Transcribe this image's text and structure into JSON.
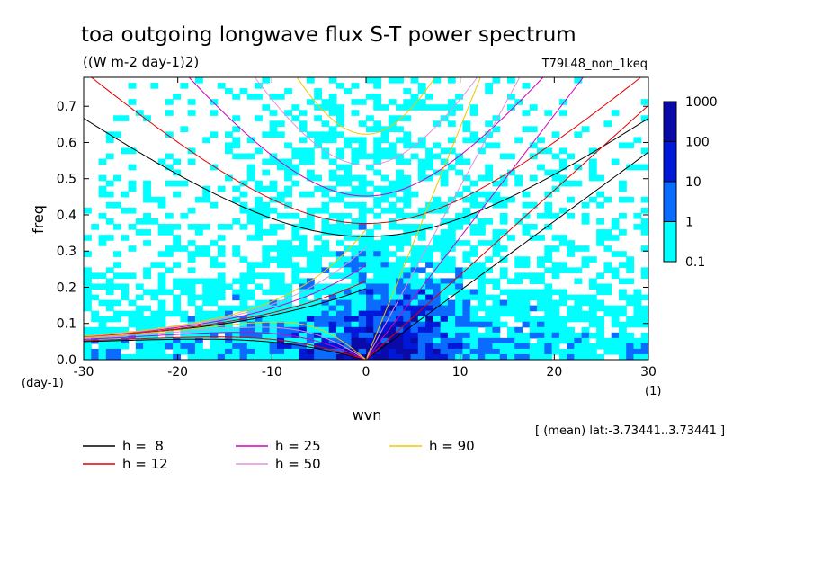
{
  "chart_data": {
    "type": "heatmap",
    "title": "toa outgoing longwave flux S-T power spectrum",
    "subtitle": "((W m-2 day-1)2)",
    "run_label": "T79L48_non_1keq",
    "xlabel": "wvn",
    "ylabel": "freq",
    "x_unit": "(1)",
    "y_unit": "(day-1)",
    "xlim": [
      -30,
      30
    ],
    "ylim": [
      0,
      0.78
    ],
    "x_ticks": [
      -30,
      -20,
      -10,
      0,
      10,
      20,
      30
    ],
    "x_tick_labels": [
      "-30",
      "-20",
      "-10",
      "0",
      "10",
      "20",
      "30"
    ],
    "y_ticks": [
      0,
      0.1,
      0.2,
      0.3,
      0.4,
      0.5,
      0.6,
      0.7
    ],
    "y_tick_labels": [
      "0.0",
      "0.1",
      "0.2",
      "0.3",
      "0.4",
      "0.5",
      "0.6",
      "0.7"
    ],
    "colorbar": {
      "levels": [
        "0.1",
        "1",
        "10",
        "100",
        "1000"
      ],
      "colors": [
        "#00ffff",
        "#0a6cff",
        "#0018d8",
        "#0a0aa8",
        "#5a18c0"
      ]
    },
    "annotation": "[ (mean) lat:-3.73441..3.73441 ]",
    "series": [
      {
        "name": "h =  8",
        "h": 8,
        "color": "#000000"
      },
      {
        "name": "h = 12",
        "h": 12,
        "color": "#e00000"
      },
      {
        "name": "h = 25",
        "h": 25,
        "color": "#d000c0"
      },
      {
        "name": "h = 50",
        "h": 50,
        "color": "#e090e0"
      },
      {
        "name": "h = 90",
        "h": 90,
        "color": "#f0c800"
      }
    ],
    "grid": false,
    "legend_position": "bottom-left"
  }
}
